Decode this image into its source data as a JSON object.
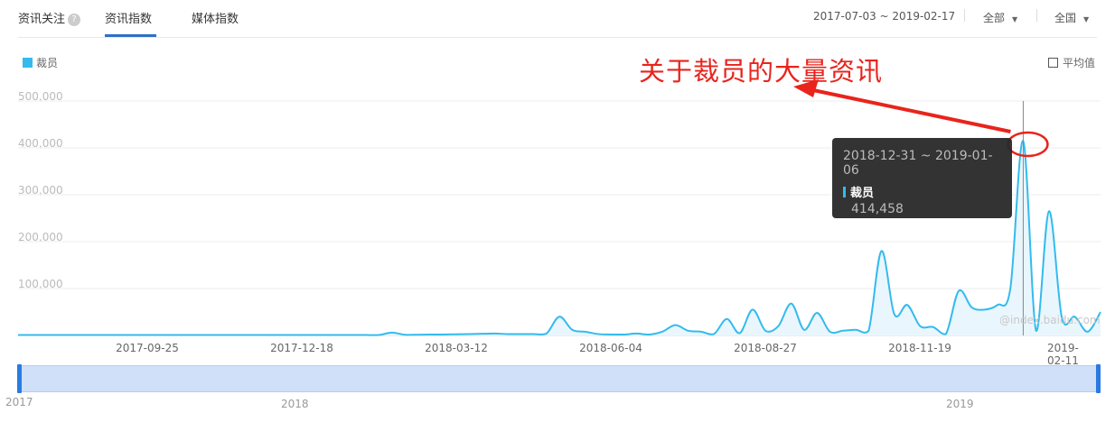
{
  "header": {
    "section_title": "资讯关注",
    "help_icon": "question-circle-icon",
    "tabs": [
      {
        "label": "资讯指数",
        "active": true
      },
      {
        "label": "媒体指数",
        "active": false
      }
    ],
    "date_range": "2017-07-03 ~ 2019-02-17",
    "source_filter": "全部",
    "region_filter": "全国"
  },
  "legend": {
    "series_label": "裁员",
    "color": "#33bbee"
  },
  "average_toggle": {
    "label": "平均值",
    "checked": false
  },
  "annotation": {
    "text": "关于裁员的大量资讯",
    "color": "#e8241c"
  },
  "tooltip": {
    "date": "2018-12-31 ~ 2019-01-06",
    "series": "裁员",
    "value": "414,458"
  },
  "watermark": "@index.baidu.com",
  "navigator": {
    "labels": [
      "2017",
      "2018",
      "2019"
    ]
  },
  "chart_data": {
    "type": "area",
    "ylim": [
      0,
      500000
    ],
    "y_ticks": [
      "100,000",
      "200,000",
      "300,000",
      "400,000",
      "500,000"
    ],
    "x_ticks": [
      "2017-09-25",
      "2017-12-18",
      "2018-03-12",
      "2018-06-04",
      "2018-08-27",
      "2018-11-19",
      "2019-02-11"
    ],
    "grid": true,
    "legend": "top-left",
    "series": [
      {
        "name": "裁员",
        "color": "#33bbee",
        "values": [
          1000,
          1000,
          1000,
          1000,
          1000,
          1000,
          1000,
          1000,
          1000,
          1000,
          1000,
          1000,
          1000,
          1000,
          1000,
          1000,
          1000,
          1000,
          1000,
          1000,
          1000,
          1000,
          1000,
          1000,
          1000,
          1000,
          1000,
          1000,
          1000,
          6000,
          1500,
          1500,
          2000,
          2000,
          2500,
          3000,
          3500,
          4000,
          3000,
          3000,
          3000,
          4000,
          40000,
          12000,
          8000,
          3000,
          2000,
          2000,
          4000,
          2000,
          8000,
          22000,
          10000,
          8000,
          3000,
          35000,
          5000,
          55000,
          10000,
          20000,
          68000,
          12000,
          48000,
          8000,
          10000,
          12000,
          10000,
          180000,
          45000,
          65000,
          20000,
          18000,
          3000,
          95000,
          60000,
          55000,
          65000,
          100000,
          414458,
          10000,
          265000,
          38000,
          40000,
          8000,
          50000
        ]
      }
    ]
  }
}
